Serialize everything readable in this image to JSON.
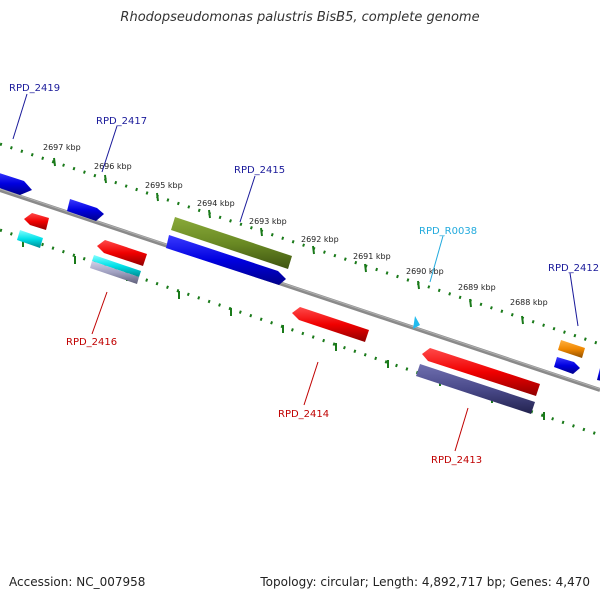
{
  "title": "Rhodopseudomonas palustris BisB5, complete genome",
  "footer": {
    "accession": "Accession: NC_007958",
    "summary": "Topology: circular; Length: 4,892,717 bp; Genes: 4,470"
  },
  "colors": {
    "backbone": "#7a7a7a",
    "tick": "#1a7a1a",
    "label_forward": "#1a1a9a",
    "label_reverse": "#c00000",
    "label_rna": "#22aadd"
  },
  "ticks": [
    {
      "label": "2697 kbp"
    },
    {
      "label": "2696 kbp"
    },
    {
      "label": "2695 kbp"
    },
    {
      "label": "2694 kbp"
    },
    {
      "label": "2693 kbp"
    },
    {
      "label": "2692 kbp"
    },
    {
      "label": "2691 kbp"
    },
    {
      "label": "2690 kbp"
    },
    {
      "label": "2689 kbp"
    },
    {
      "label": "2688 kbp"
    }
  ],
  "gene_labels": [
    {
      "name": "RPD_2419",
      "strand": "forward"
    },
    {
      "name": "RPD_2417",
      "strand": "forward"
    },
    {
      "name": "RPD_2415",
      "strand": "forward"
    },
    {
      "name": "RPD_R0038",
      "strand": "rna"
    },
    {
      "name": "RPD_2412",
      "strand": "forward"
    },
    {
      "name": "RPD_2416",
      "strand": "reverse"
    },
    {
      "name": "RPD_2414",
      "strand": "reverse"
    },
    {
      "name": "RPD_2413",
      "strand": "reverse"
    }
  ]
}
